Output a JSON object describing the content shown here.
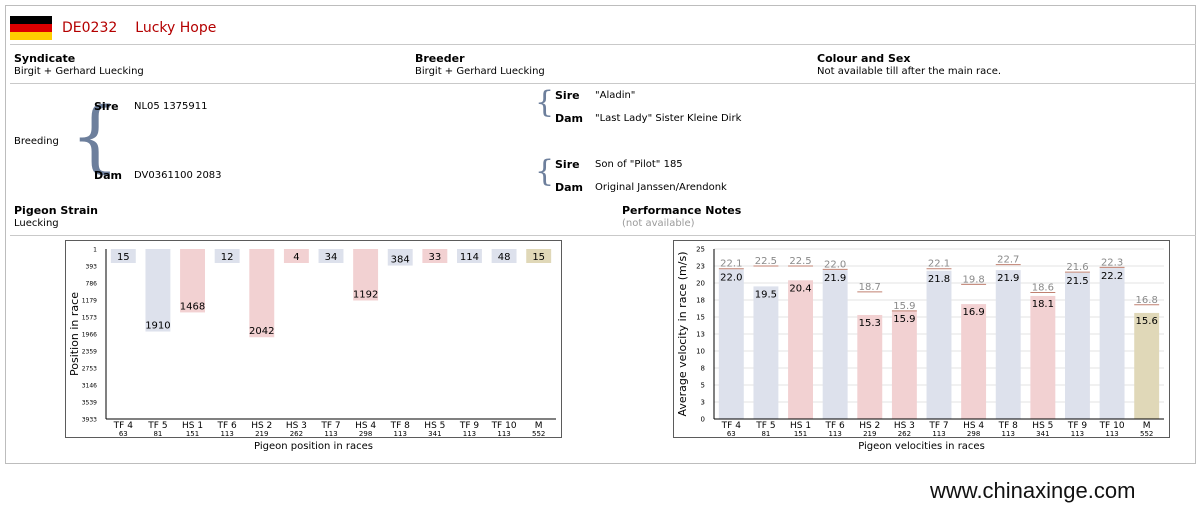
{
  "header": {
    "flag_colors": [
      "#000000",
      "#dd0000",
      "#ffce00"
    ],
    "ring": "DE0232",
    "name": "Lucky Hope"
  },
  "info": {
    "syndicate_label": "Syndicate",
    "syndicate_value": "Birgit + Gerhard Luecking",
    "breeder_label": "Breeder",
    "breeder_value": "Birgit + Gerhard Luecking",
    "colour_label": "Colour and Sex",
    "colour_value": "Not available till after the main race."
  },
  "breeding": {
    "label": "Breeding",
    "sire_label": "Sire",
    "sire_value": "NL05 1375911",
    "dam_label": "Dam",
    "dam_value": "DV0361100 2083",
    "sire_parents": {
      "sire_label": "Sire",
      "sire_value": "\"Aladin\"",
      "dam_label": "Dam",
      "dam_value": "\"Last Lady\" Sister Kleine Dirk"
    },
    "dam_parents": {
      "sire_label": "Sire",
      "sire_value": "Son of \"Pilot\" 185",
      "dam_label": "Dam",
      "dam_value": "Original Janssen/Arendonk"
    }
  },
  "strain": {
    "label": "Pigeon Strain",
    "value": "Luecking"
  },
  "performance": {
    "label": "Performance Notes",
    "value": "(not available)"
  },
  "colors": {
    "tf": "#dde1ec",
    "hs": "#f2d1d2",
    "m": "#e0d8b8",
    "prev_line": "#c08070"
  },
  "watermark": "www.chinaxinge.com",
  "chart_data": [
    {
      "type": "bar",
      "title": "",
      "xlabel": "Pigeon position in races",
      "ylabel": "Position in race",
      "y_inverted": true,
      "ylim": [
        1,
        3933
      ],
      "y_ticks": [
        "1",
        "393",
        "786",
        "1179",
        "1573",
        "1966",
        "2359",
        "2753",
        "3146",
        "3539",
        "3933"
      ],
      "categories": [
        "TF 4",
        "TF 5",
        "HS 1",
        "TF 6",
        "HS 2",
        "HS 3",
        "TF 7",
        "HS 4",
        "TF 8",
        "HS 5",
        "TF 9",
        "TF 10",
        "M"
      ],
      "sub_labels": [
        "63",
        "81",
        "151",
        "113",
        "219",
        "262",
        "113",
        "298",
        "113",
        "341",
        "113",
        "113",
        "552"
      ],
      "kinds": [
        "tf",
        "tf",
        "hs",
        "tf",
        "hs",
        "hs",
        "tf",
        "hs",
        "tf",
        "hs",
        "tf",
        "tf",
        "m"
      ],
      "values": [
        15,
        1910,
        1468,
        12,
        2042,
        4,
        34,
        1192,
        384,
        33,
        114,
        48,
        15
      ]
    },
    {
      "type": "bar",
      "title": "",
      "xlabel": "Pigeon velocities in races",
      "ylabel": "Average velocity in race (m/s)",
      "ylim": [
        0,
        25
      ],
      "y_ticks": [
        "0",
        "3",
        "5",
        "8",
        "10",
        "13",
        "15",
        "18",
        "20",
        "23",
        "25"
      ],
      "categories": [
        "TF 4",
        "TF 5",
        "HS 1",
        "TF 6",
        "HS 2",
        "HS 3",
        "TF 7",
        "HS 4",
        "TF 8",
        "HS 5",
        "TF 9",
        "TF 10",
        "M"
      ],
      "sub_labels": [
        "63",
        "81",
        "151",
        "113",
        "219",
        "262",
        "113",
        "298",
        "113",
        "341",
        "113",
        "113",
        "552"
      ],
      "kinds": [
        "tf",
        "tf",
        "hs",
        "tf",
        "hs",
        "hs",
        "tf",
        "hs",
        "tf",
        "hs",
        "tf",
        "tf",
        "m"
      ],
      "values": [
        22.0,
        19.5,
        20.4,
        21.9,
        15.3,
        15.9,
        21.8,
        16.9,
        21.9,
        18.1,
        21.5,
        22.2,
        15.6
      ],
      "reference_values": [
        22.1,
        22.5,
        22.5,
        22.0,
        18.7,
        15.9,
        22.1,
        19.8,
        22.7,
        18.6,
        21.6,
        22.3,
        16.8
      ]
    }
  ]
}
